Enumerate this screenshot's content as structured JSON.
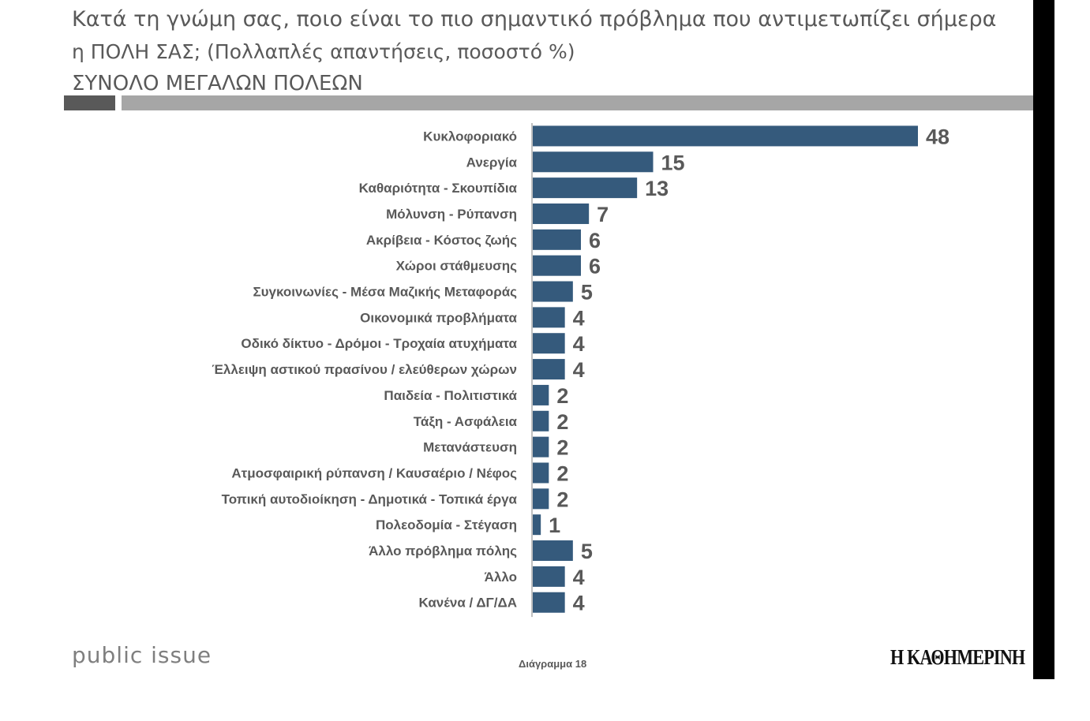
{
  "header": {
    "title_line1": "Κατά τη γνώμη σας, ποιο είναι το πιο σημαντικό πρόβλημα που αντιμετωπίζει σήμερα",
    "title_line2": "η ΠΟΛΗ ΣΑΣ; (Πολλαπλές απαντήσεις, ποσοστό %)",
    "subtitle": "ΣΥΝΟΛΟ ΜΕΓΑΛΩΝ ΠΟΛΕΩΝ"
  },
  "colors": {
    "bar": "#355a7c",
    "text": "#595959"
  },
  "chart_data": {
    "type": "bar",
    "orientation": "horizontal",
    "categories": [
      "Κυκλοφοριακό",
      "Ανεργία",
      "Καθαριότητα - Σκουπίδια",
      "Μόλυνση - Ρύπανση",
      "Ακρίβεια - Κόστος ζωής",
      "Χώροι στάθμευσης",
      "Συγκοινωνίες - Μέσα Μαζικής Μεταφοράς",
      "Οικονομικά προβλήματα",
      "Οδικό δίκτυο - Δρόμοι - Τροχαία ατυχήματα",
      "Έλλειψη αστικού πρασίνου / ελεύθερων χώρων",
      "Παιδεία - Πολιτιστικά",
      "Τάξη - Ασφάλεια",
      "Μετανάστευση",
      "Ατμοσφαιρική ρύπανση / Καυσαέριο / Νέφος",
      "Τοπική αυτοδιοίκηση - Δημοτικά - Τοπικά έργα",
      "Πολεοδομία - Στέγαση",
      "Άλλο πρόβλημα πόλης",
      "Άλλο",
      "Κανένα / ΔΓ/ΔΑ"
    ],
    "values": [
      48,
      15,
      13,
      7,
      6,
      6,
      5,
      4,
      4,
      4,
      2,
      2,
      2,
      2,
      2,
      1,
      5,
      4,
      4
    ],
    "title": "",
    "xlabel": "",
    "ylabel": "",
    "xlim": [
      0,
      48
    ],
    "data_labels": true,
    "grid": false,
    "legend": "none"
  },
  "footer": {
    "source": "public issue",
    "diagram_label": "Διάγραμμα 18",
    "publisher": "Η ΚΑΘΗΜΕΡΙΝΗ"
  }
}
